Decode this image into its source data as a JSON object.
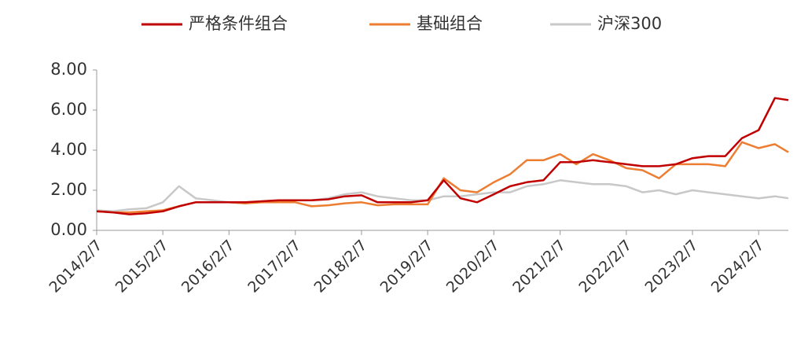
{
  "chart_data": {
    "type": "line",
    "x": [
      "2014/2/7",
      "2014/5/7",
      "2014/8/7",
      "2014/11/7",
      "2015/2/7",
      "2015/5/7",
      "2015/8/7",
      "2015/11/7",
      "2016/2/7",
      "2016/5/7",
      "2016/8/7",
      "2016/11/7",
      "2017/2/7",
      "2017/5/7",
      "2017/8/7",
      "2017/11/7",
      "2018/2/7",
      "2018/5/7",
      "2018/8/7",
      "2018/11/7",
      "2019/2/7",
      "2019/5/7",
      "2019/8/7",
      "2019/11/7",
      "2020/2/7",
      "2020/5/7",
      "2020/8/7",
      "2020/11/7",
      "2021/2/7",
      "2021/5/7",
      "2021/8/7",
      "2021/11/7",
      "2022/2/7",
      "2022/5/7",
      "2022/8/7",
      "2022/11/7",
      "2023/2/7",
      "2023/5/7",
      "2023/8/7",
      "2023/11/7",
      "2024/2/7",
      "2024/5/7",
      "2024/7/20"
    ],
    "series": [
      {
        "name": "严格条件组合",
        "color": "#c00000",
        "values": [
          0.95,
          0.9,
          0.8,
          0.85,
          0.95,
          1.2,
          1.4,
          1.4,
          1.4,
          1.4,
          1.45,
          1.5,
          1.5,
          1.5,
          1.55,
          1.7,
          1.75,
          1.4,
          1.4,
          1.4,
          1.5,
          2.5,
          1.6,
          1.4,
          1.8,
          2.2,
          2.4,
          2.5,
          3.4,
          3.4,
          3.5,
          3.4,
          3.3,
          3.2,
          3.2,
          3.3,
          3.6,
          3.7,
          3.7,
          4.6,
          5.0,
          6.6,
          6.5
        ]
      },
      {
        "name": "基础组合",
        "color": "#ed7d31",
        "values": [
          0.95,
          0.9,
          0.9,
          0.95,
          1.0,
          1.2,
          1.4,
          1.4,
          1.4,
          1.35,
          1.4,
          1.4,
          1.4,
          1.2,
          1.25,
          1.35,
          1.4,
          1.25,
          1.3,
          1.3,
          1.3,
          2.6,
          2.0,
          1.9,
          2.4,
          2.8,
          3.5,
          3.5,
          3.8,
          3.3,
          3.8,
          3.5,
          3.1,
          3.0,
          2.6,
          3.3,
          3.3,
          3.3,
          3.2,
          4.4,
          4.1,
          4.3,
          3.9
        ]
      },
      {
        "name": "沪深300",
        "color": "#c8c8c8",
        "values": [
          1.0,
          0.95,
          1.05,
          1.1,
          1.4,
          2.2,
          1.6,
          1.5,
          1.4,
          1.35,
          1.45,
          1.5,
          1.5,
          1.5,
          1.6,
          1.8,
          1.9,
          1.7,
          1.6,
          1.5,
          1.5,
          1.7,
          1.7,
          1.8,
          1.9,
          1.9,
          2.2,
          2.3,
          2.5,
          2.4,
          2.3,
          2.3,
          2.2,
          1.9,
          2.0,
          1.8,
          2.0,
          1.9,
          1.8,
          1.7,
          1.6,
          1.7,
          1.6
        ]
      }
    ],
    "xlim": [
      "2014/2/7",
      "2024/7/20"
    ],
    "xticks": [
      "2014/2/7",
      "2015/2/7",
      "2016/2/7",
      "2017/2/7",
      "2018/2/7",
      "2019/2/7",
      "2020/2/7",
      "2021/2/7",
      "2022/2/7",
      "2023/2/7",
      "2024/2/7"
    ],
    "ylim": [
      0,
      8
    ],
    "yticks": [
      {
        "value": 0,
        "label": "0.00"
      },
      {
        "value": 2,
        "label": "2.00"
      },
      {
        "value": 4,
        "label": "4.00"
      },
      {
        "value": 6,
        "label": "6.00"
      },
      {
        "value": 8,
        "label": "8.00"
      }
    ],
    "legend": "top"
  }
}
